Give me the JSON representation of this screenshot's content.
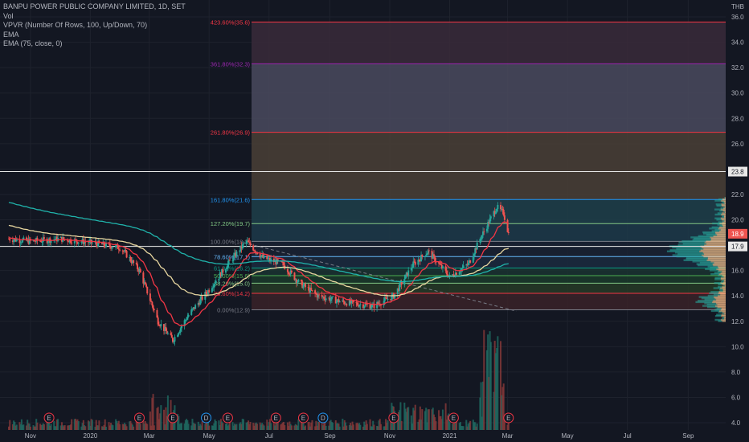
{
  "legend": {
    "symbol_line": "BANPU POWER PUBLIC COMPANY LIMITED, 1D, SET",
    "vol": "Vol",
    "vpvr": "VPVR (Number Of Rows, 100, Up/Down, 70)",
    "ema": "EMA",
    "ema75": "EMA (75, close, 0)"
  },
  "currency": "THB",
  "colors": {
    "background": "#131722",
    "up": "#26a69a",
    "down": "#ef5350",
    "ema_red": "#f23645",
    "ema_yellow": "#e8d7a0",
    "ema_teal": "#20b2aa",
    "grid": "#1e222d"
  },
  "price_tags": [
    {
      "label": "23.8",
      "value": 23.8,
      "bg": "#e8e8e8",
      "fg": "#131722"
    },
    {
      "label": "18.9",
      "value": 18.9,
      "bg": "#ef5350",
      "fg": "#ffffff"
    },
    {
      "label": "17.9",
      "value": 17.9,
      "bg": "#e8e8e8",
      "fg": "#131722"
    }
  ],
  "fib_levels": [
    {
      "label": "423.60%(35.6)",
      "value": 35.6,
      "color": "#f23645",
      "fill": "#3a2a3a"
    },
    {
      "label": "361.80%(32.3)",
      "value": 32.3,
      "color": "#9c27b0",
      "fill": "#4a4a5e"
    },
    {
      "label": "261.80%(26.9)",
      "value": 26.9,
      "color": "#f23645",
      "fill": "#4a3f36"
    },
    {
      "label": "161.80%(21.6)",
      "value": 21.6,
      "color": "#2196f3",
      "fill": "#1f3f4a"
    },
    {
      "label": "127.20%(19.7)",
      "value": 19.7,
      "color": "#81c784",
      "fill": "#1d3a4a"
    },
    {
      "label": "100.00%(18.3)",
      "value": 18.3,
      "color": "#787b86",
      "fill": "#1a2233"
    },
    {
      "label": "78.60%(17.1)",
      "value": 17.1,
      "color": "#64b5f6",
      "fill": "#1b2a3e"
    },
    {
      "label": "61.80%(16.2)",
      "value": 16.2,
      "color": "#089981",
      "fill": "#1a3330"
    },
    {
      "label": "50.00%(15.6)",
      "value": 15.6,
      "color": "#4caf50",
      "fill": "#1b3a2a"
    },
    {
      "label": "38.20%(15.0)",
      "value": 15.0,
      "color": "#81c784",
      "fill": "#263a26"
    },
    {
      "label": "23.60%(14.2)",
      "value": 14.2,
      "color": "#f23645",
      "fill": "#3a2228"
    },
    {
      "label": "0.00%(12.9)",
      "value": 12.9,
      "color": "#787b86",
      "fill": "#1a2233"
    }
  ],
  "events": [
    "E",
    "E",
    "E",
    "D",
    "E",
    "E",
    "E",
    "D",
    "E",
    "E",
    "E"
  ],
  "chart_data": {
    "type": "candlestick",
    "x_axis": {
      "ticks": [
        "Nov",
        "2020",
        "Mar",
        "May",
        "Jul",
        "Sep",
        "Nov",
        "2021",
        "Mar",
        "May",
        "Jul",
        "Sep"
      ],
      "range": [
        "2019-10",
        "2021-10"
      ]
    },
    "y_axis": {
      "unit": "THB",
      "ticks": [
        4.0,
        6.0,
        8.0,
        10.0,
        12.0,
        14.0,
        16.0,
        18.0,
        20.0,
        22.0,
        24.0,
        26.0,
        28.0,
        30.0,
        32.0,
        34.0,
        36.0
      ],
      "ylim": [
        3.5,
        37.0
      ]
    },
    "price_path": [
      [
        "2019-10-10",
        18.5
      ],
      [
        "2019-11-01",
        18.3
      ],
      [
        "2019-12-01",
        18.5
      ],
      [
        "2020-01-01",
        18.2
      ],
      [
        "2020-02-01",
        17.8
      ],
      [
        "2020-02-20",
        16.0
      ],
      [
        "2020-03-10",
        12.0
      ],
      [
        "2020-03-25",
        10.5
      ],
      [
        "2020-04-10",
        12.5
      ],
      [
        "2020-05-01",
        14.5
      ],
      [
        "2020-05-20",
        16.5
      ],
      [
        "2020-06-08",
        18.3
      ],
      [
        "2020-06-25",
        17.0
      ],
      [
        "2020-07-15",
        16.5
      ],
      [
        "2020-08-01",
        15.0
      ],
      [
        "2020-08-20",
        14.0
      ],
      [
        "2020-09-15",
        13.5
      ],
      [
        "2020-10-15",
        13.2
      ],
      [
        "2020-11-05",
        14.0
      ],
      [
        "2020-11-25",
        16.5
      ],
      [
        "2020-12-10",
        17.5
      ],
      [
        "2021-01-01",
        15.5
      ],
      [
        "2021-01-20",
        16.5
      ],
      [
        "2021-02-01",
        18.5
      ],
      [
        "2021-02-18",
        21.0
      ],
      [
        "2021-02-25",
        20.5
      ],
      [
        "2021-03-02",
        18.9
      ]
    ],
    "last_close": 18.9,
    "horizontal_lines": [
      23.8,
      17.9
    ],
    "series": [
      {
        "name": "EMA",
        "color": "#f23645"
      },
      {
        "name": "EMA (75, close, 0)",
        "color": "#e8d7a0"
      }
    ],
    "volume_events": {
      "2020-03": "high",
      "2021-02": "very high"
    }
  }
}
